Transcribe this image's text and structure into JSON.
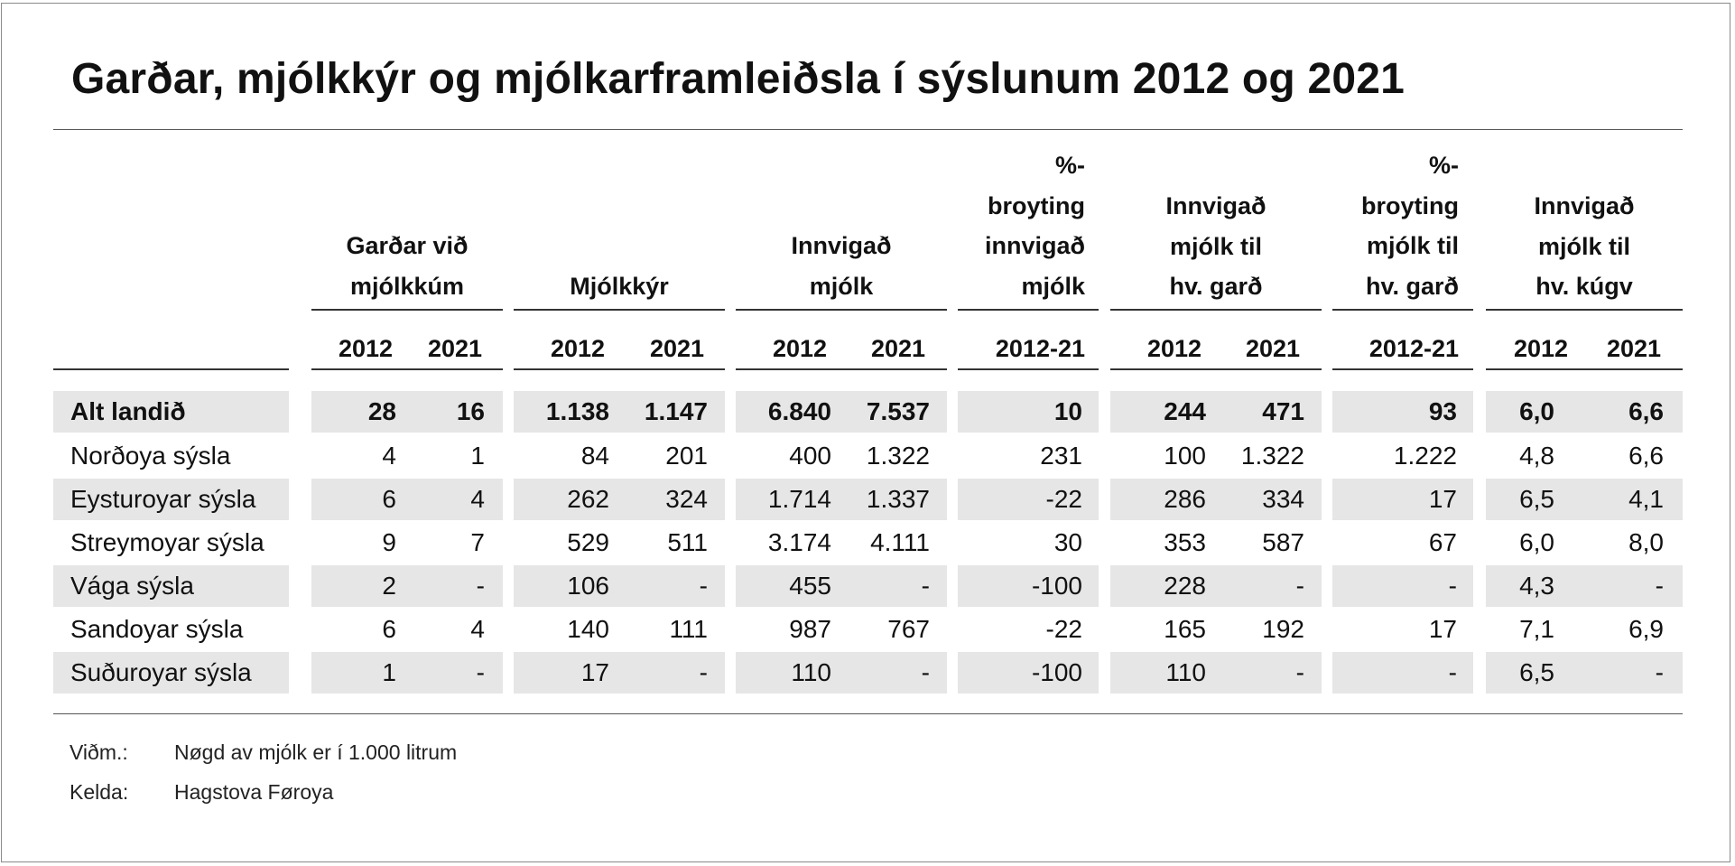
{
  "title": "Garðar, mjólkkýr og mjólkarframleiðsla í sýslunum 2012 og 2021",
  "column_groups": [
    {
      "label": "Garðar við mjólkkúm",
      "years": [
        "2012",
        "2021"
      ]
    },
    {
      "label": "Mjólkkýr",
      "years": [
        "2012",
        "2021"
      ]
    },
    {
      "label": "Innvigað mjólk",
      "years": [
        "2012",
        "2021"
      ]
    },
    {
      "label": "%-broyting innvigað mjólk",
      "years": [
        "2012-21"
      ]
    },
    {
      "label": "Innvigað mjólk til hv. garð",
      "years": [
        "2012",
        "2021"
      ]
    },
    {
      "label": "%-broyting mjólk til hv. garð",
      "years": [
        "2012-21"
      ]
    },
    {
      "label": "Innvigað mjólk til hv. kúgv",
      "years": [
        "2012",
        "2021"
      ]
    }
  ],
  "header_lines": [
    [
      "Garðar við",
      "mjólkkúm"
    ],
    [
      "Mjólkkýr"
    ],
    [
      "Innvigað",
      "mjólk"
    ],
    [
      "%-",
      "broyting",
      "innvigað",
      "mjólk"
    ],
    [
      "Innvigað",
      "mjólk til",
      "hv. garð"
    ],
    [
      "%-",
      "broyting",
      "mjólk til",
      "hv. garð"
    ],
    [
      "Innvigað",
      "mjólk til",
      "hv. kúgv"
    ]
  ],
  "rows": [
    {
      "label": "Alt landið",
      "bold": true,
      "values": [
        "28",
        "16",
        "1.138",
        "1.147",
        "6.840",
        "7.537",
        "10",
        "244",
        "471",
        "93",
        "6,0",
        "6,6"
      ]
    },
    {
      "label": "Norðoya sýsla",
      "values": [
        "4",
        "1",
        "84",
        "201",
        "400",
        "1.322",
        "231",
        "100",
        "1.322",
        "1.222",
        "4,8",
        "6,6"
      ]
    },
    {
      "label": "Eysturoyar sýsla",
      "values": [
        "6",
        "4",
        "262",
        "324",
        "1.714",
        "1.337",
        "-22",
        "286",
        "334",
        "17",
        "6,5",
        "4,1"
      ]
    },
    {
      "label": "Streymoyar sýsla",
      "values": [
        "9",
        "7",
        "529",
        "511",
        "3.174",
        "4.111",
        "30",
        "353",
        "587",
        "67",
        "6,0",
        "8,0"
      ]
    },
    {
      "label": "Vága sýsla",
      "values": [
        "2",
        "-",
        "106",
        "-",
        "455",
        "-",
        "-100",
        "228",
        "-",
        "-",
        "4,3",
        "-"
      ]
    },
    {
      "label": "Sandoyar sýsla",
      "values": [
        "6",
        "4",
        "140",
        "111",
        "987",
        "767",
        "-22",
        "165",
        "192",
        "17",
        "7,1",
        "6,9"
      ]
    },
    {
      "label": "Suðuroyar sýsla",
      "values": [
        "1",
        "-",
        "17",
        "-",
        "110",
        "-",
        "-100",
        "110",
        "-",
        "-",
        "6,5",
        "-"
      ]
    }
  ],
  "notes": [
    {
      "key": "Viðm.:",
      "text": "Nøgd av mjólk er í 1.000 litrum"
    },
    {
      "key": "Kelda:",
      "text": "Hagstova Føroya"
    }
  ],
  "colors": {
    "band": "#e6e6e6",
    "rule": "#333333",
    "text": "#111111"
  }
}
